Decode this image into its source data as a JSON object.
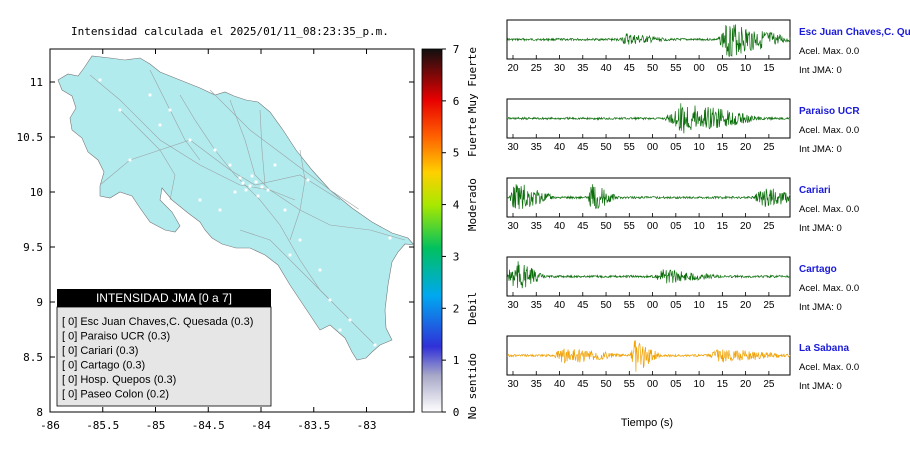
{
  "map": {
    "title": "Intensidad calculada el 2025/01/11_08:23:35_p.m.",
    "x_ticks": [
      "-86",
      "-85.5",
      "-85",
      "-84.5",
      "-84",
      "-83.5",
      "-83"
    ],
    "x_values": [
      -86,
      -85.5,
      -85,
      -84.5,
      -84,
      -83.5,
      -83
    ],
    "y_ticks": [
      "11",
      "10.5",
      "10",
      "9.5",
      "9",
      "8.5",
      "8"
    ],
    "y_values": [
      11,
      10.5,
      10,
      9.5,
      9,
      8.5,
      8
    ],
    "xlim": [
      -86,
      -82.55
    ],
    "ylim": [
      8,
      11.3
    ],
    "land_color": "#b2ebee"
  },
  "colorbar": {
    "ticks": [
      "0",
      "1",
      "2",
      "3",
      "4",
      "5",
      "6",
      "7"
    ],
    "labels": [
      "No sentido",
      "Debil",
      "Moderado",
      "Fuerte",
      "Muy Fuerte"
    ]
  },
  "legend": {
    "title": "INTENSIDAD JMA [0 a 7]",
    "items": [
      "[ 0]  Esc Juan Chaves,C. Quesada (0.3)",
      "[ 0]  Paraiso UCR (0.3)",
      "[ 0]  Cariari (0.3)",
      "[ 0]  Cartago (0.3)",
      "[ 0]  Hosp. Quepos (0.3)",
      "[ 0]  Paseo Colon (0.2)"
    ]
  },
  "chart_data": {
    "type": "line",
    "xlabel": "Tiempo (s)",
    "series": [
      {
        "name": "Esc Juan Chaves,C. Qu",
        "acel": "Acel. Max. 0.0",
        "int": "Int JMA: 0",
        "color": "#0b6e0b",
        "ticks": [
          "20",
          "25",
          "30",
          "35",
          "40",
          "45",
          "50",
          "55",
          "00",
          "05",
          "10",
          "15"
        ],
        "bursts": [
          [
            0.42,
            0.18,
            0.35
          ],
          [
            0.78,
            0.25,
            1.0
          ]
        ]
      },
      {
        "name": "Paraiso UCR",
        "acel": "Acel. Max. 0.0",
        "int": "Int JMA: 0",
        "color": "#0b6e0b",
        "ticks": [
          "30",
          "35",
          "40",
          "45",
          "50",
          "55",
          "00",
          "05",
          "10",
          "15",
          "20",
          "25"
        ],
        "bursts": [
          [
            0.58,
            0.2,
            0.35
          ],
          [
            0.62,
            0.3,
            0.95
          ]
        ]
      },
      {
        "name": "Cariari",
        "acel": "Acel. Max. 0.0",
        "int": "Int JMA: 0",
        "color": "#0b6e0b",
        "ticks": [
          "30",
          "35",
          "40",
          "45",
          "50",
          "55",
          "00",
          "05",
          "10",
          "15",
          "20",
          "25"
        ],
        "bursts": [
          [
            0.03,
            0.15,
            0.9
          ],
          [
            0.3,
            0.1,
            0.8
          ],
          [
            0.9,
            0.2,
            0.6
          ]
        ]
      },
      {
        "name": "Cartago",
        "acel": "Acel. Max. 0.0",
        "int": "Int JMA: 0",
        "color": "#0b6e0b",
        "ticks": [
          "30",
          "35",
          "40",
          "45",
          "50",
          "55",
          "00",
          "05",
          "10",
          "15",
          "20",
          "25"
        ],
        "bursts": [
          [
            0.02,
            0.12,
            1.0
          ],
          [
            0.55,
            0.25,
            0.4
          ]
        ]
      },
      {
        "name": "La Sabana",
        "acel": "Acel. Max. 0.0",
        "int": "Int JMA: 0",
        "color": "#f0a000",
        "ticks": [
          "30",
          "35",
          "40",
          "45",
          "50",
          "55",
          "00",
          "05",
          "10",
          "15",
          "20",
          "25"
        ],
        "bursts": [
          [
            0.2,
            0.25,
            0.5
          ],
          [
            0.45,
            0.1,
            1.0
          ],
          [
            0.75,
            0.3,
            0.4
          ]
        ]
      }
    ]
  }
}
